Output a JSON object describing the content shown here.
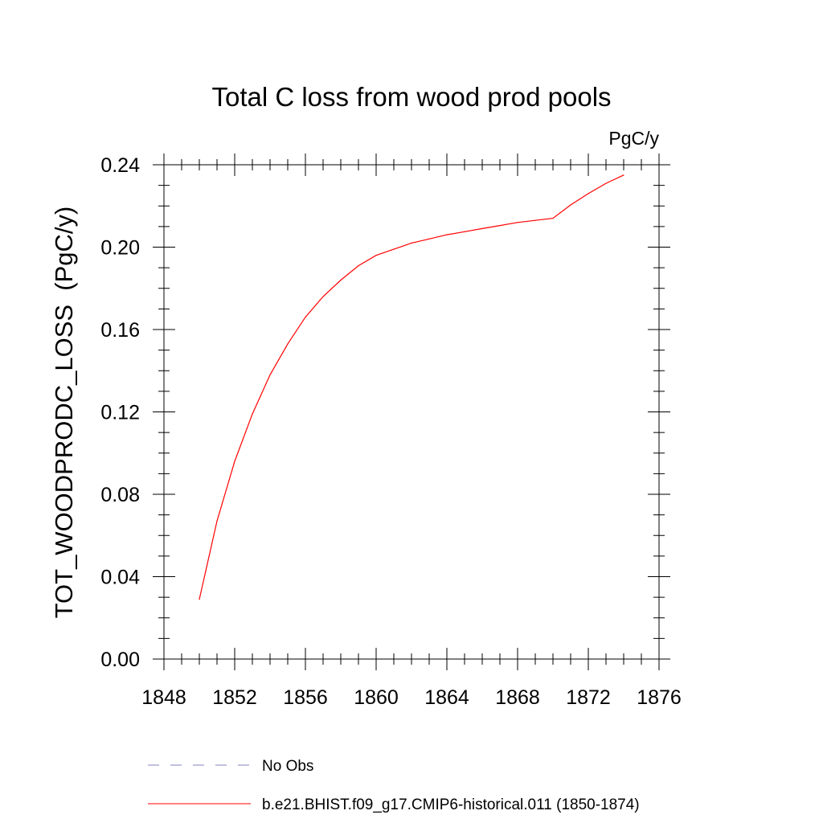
{
  "chart_data": {
    "type": "line",
    "title": "Total C loss from wood prod pools",
    "units": "PgC/y",
    "ylabel": "TOT_WOODPRODC_LOSS  (PgC/y)",
    "xlabel": "",
    "xlim": [
      1848,
      1876
    ],
    "ylim": [
      0.0,
      0.24
    ],
    "x_ticks": [
      1848,
      1852,
      1856,
      1860,
      1864,
      1868,
      1872,
      1876
    ],
    "x_tick_labels": [
      "1848",
      "1852",
      "1856",
      "1860",
      "1864",
      "1868",
      "1872",
      "1876"
    ],
    "y_ticks": [
      0.0,
      0.04,
      0.08,
      0.12,
      0.16,
      0.2,
      0.24
    ],
    "y_tick_labels": [
      "0.00",
      "0.04",
      "0.08",
      "0.12",
      "0.16",
      "0.20",
      "0.24"
    ],
    "grid": false,
    "legend_position": "bottom",
    "series": [
      {
        "name": "b.e21.BHIST.f09_g17.CMIP6-historical.011 (1850-1874)",
        "color": "#ff0000",
        "style": "solid",
        "x": [
          1850,
          1851,
          1852,
          1853,
          1854,
          1855,
          1856,
          1857,
          1858,
          1859,
          1860,
          1861,
          1862,
          1863,
          1864,
          1865,
          1866,
          1867,
          1868,
          1869,
          1870,
          1871,
          1872,
          1873,
          1874
        ],
        "y": [
          0.029,
          0.067,
          0.096,
          0.119,
          0.138,
          0.153,
          0.166,
          0.176,
          0.184,
          0.191,
          0.196,
          0.199,
          0.202,
          0.204,
          0.206,
          0.2075,
          0.209,
          0.2105,
          0.212,
          0.213,
          0.214,
          0.2205,
          0.226,
          0.231,
          0.235
        ]
      }
    ],
    "legend": [
      {
        "label": "No Obs",
        "color": "#8080c0",
        "style": "dashed"
      },
      {
        "label": "b.e21.BHIST.f09_g17.CMIP6-historical.011 (1850-1874)",
        "color": "#ff0000",
        "style": "solid"
      }
    ]
  }
}
